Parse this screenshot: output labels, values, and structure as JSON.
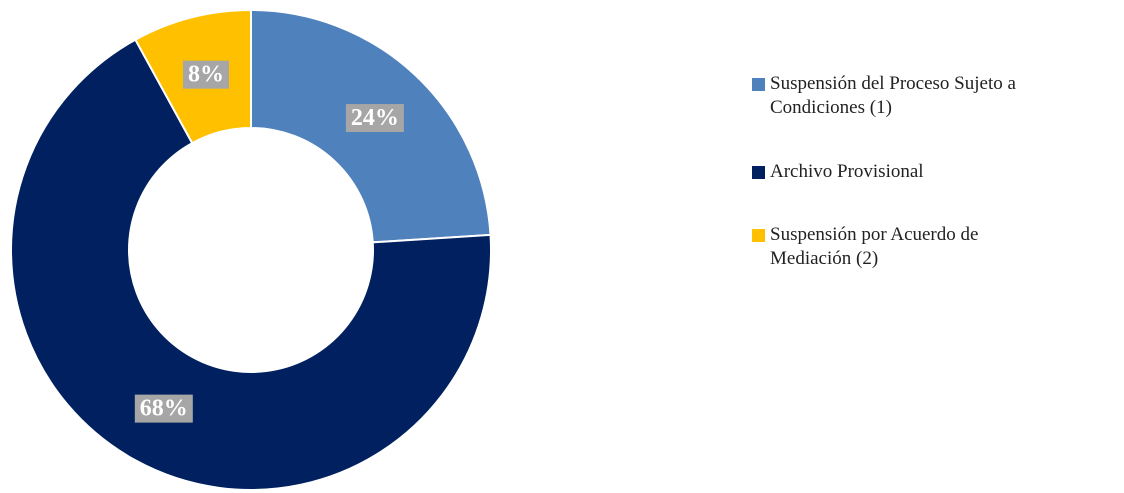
{
  "chart_data": {
    "type": "donut",
    "categories": [
      "Suspensión del Proceso Sujeto a Condiciones (1)",
      "Archivo Provisional",
      "Suspensión por Acuerdo de Mediación (2)"
    ],
    "values": [
      24,
      68,
      8
    ],
    "value_labels": [
      "24%",
      "68%",
      "8%"
    ],
    "colors": [
      "#4f81bd",
      "#002060",
      "#ffc000"
    ],
    "legend": "right"
  }
}
